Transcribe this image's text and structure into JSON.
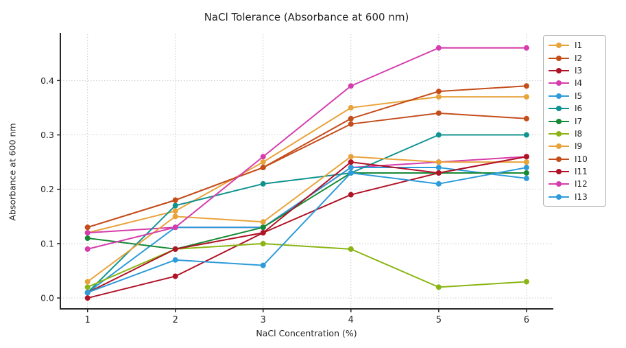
{
  "title": "NaCl Tolerance (Absorbance at 600 nm)",
  "chart_data": {
    "type": "line",
    "title": "NaCl Tolerance (Absorbance at 600 nm)",
    "xlabel": "NaCl Concentration (%)",
    "ylabel": "Absorbance at 600 nm",
    "x": [
      1,
      2,
      3,
      4,
      5,
      6
    ],
    "xticks": [
      "1",
      "2",
      "3",
      "4",
      "5",
      "6"
    ],
    "yticks": [
      0.0,
      0.1,
      0.2,
      0.3,
      0.4
    ],
    "ytick_labels": [
      "0.0",
      "0.1",
      "0.2",
      "0.3",
      "0.4"
    ],
    "xlim": [
      0.69,
      6.29
    ],
    "ylim": [
      -0.02,
      0.485
    ],
    "grid": true,
    "marker": "circle",
    "legend_position": "outside-right",
    "axis_color": "#262626",
    "grid_color": "#c8c8c8",
    "series": [
      {
        "name": "I1",
        "color": "#E8A33B",
        "values": [
          0.12,
          0.16,
          0.25,
          0.35,
          0.37,
          0.37
        ]
      },
      {
        "name": "I2",
        "color": "#C44E1B",
        "values": [
          0.13,
          0.18,
          0.24,
          0.33,
          0.38,
          0.39
        ]
      },
      {
        "name": "I3",
        "color": "#B01226",
        "values": [
          0.0,
          0.04,
          0.12,
          0.19,
          0.23,
          0.26
        ]
      },
      {
        "name": "I4",
        "color": "#D63CAB",
        "values": [
          0.12,
          0.13,
          0.13,
          0.24,
          0.25,
          0.26
        ]
      },
      {
        "name": "I5",
        "color": "#2D9BD9",
        "values": [
          0.01,
          0.13,
          0.13,
          0.24,
          0.24,
          0.22
        ]
      },
      {
        "name": "I6",
        "color": "#109390",
        "values": [
          0.01,
          0.17,
          0.21,
          0.23,
          0.3,
          0.3
        ]
      },
      {
        "name": "I7",
        "color": "#168935",
        "values": [
          0.11,
          0.09,
          0.13,
          0.23,
          0.23,
          0.23
        ]
      },
      {
        "name": "I8",
        "color": "#8AB513",
        "values": [
          0.02,
          0.09,
          0.1,
          0.09,
          0.02,
          0.03
        ]
      },
      {
        "name": "I9",
        "color": "#E8A33B",
        "values": [
          0.03,
          0.15,
          0.14,
          0.26,
          0.25,
          0.25
        ]
      },
      {
        "name": "I10",
        "color": "#C44E1B",
        "values": [
          0.13,
          0.18,
          0.24,
          0.32,
          0.34,
          0.33
        ]
      },
      {
        "name": "I11",
        "color": "#B01226",
        "values": [
          0.01,
          0.09,
          0.12,
          0.25,
          0.23,
          0.26
        ]
      },
      {
        "name": "I12",
        "color": "#D63CAB",
        "values": [
          0.09,
          0.13,
          0.26,
          0.39,
          0.46,
          0.46
        ]
      },
      {
        "name": "I13",
        "color": "#2D9BD9",
        "values": [
          0.01,
          0.07,
          0.06,
          0.23,
          0.21,
          0.24
        ]
      }
    ]
  }
}
